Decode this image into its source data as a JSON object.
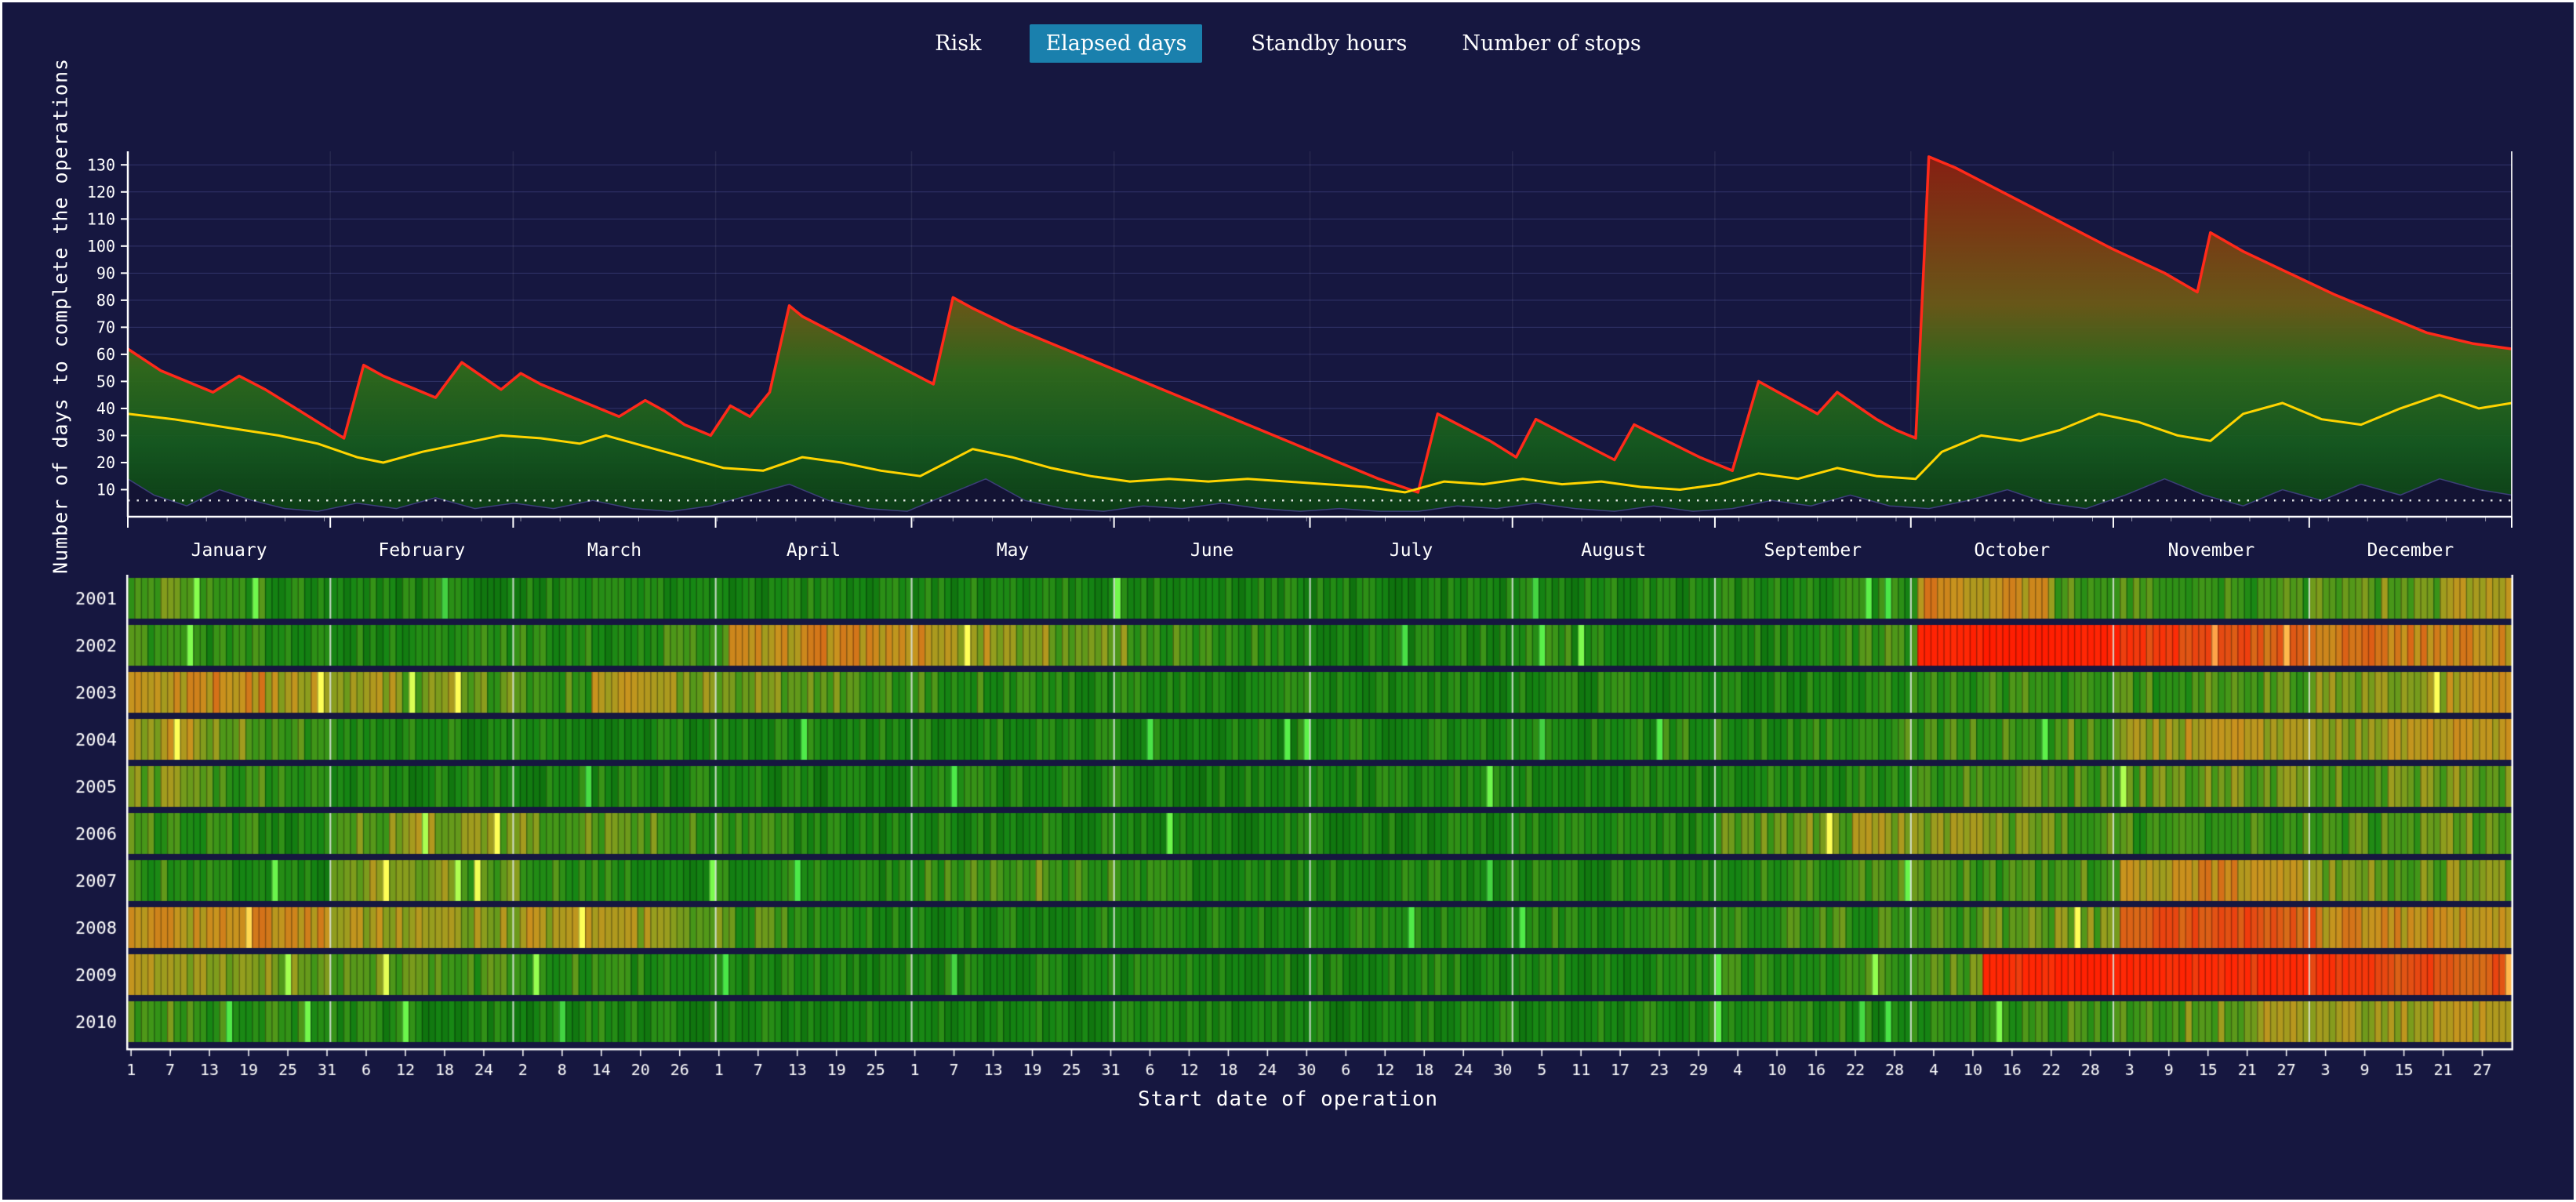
{
  "page": {
    "background": "#161740",
    "frame": "#ffffff"
  },
  "colors": {
    "tab_active_bg": "#1a80ad",
    "max_line": "#ff2a1a",
    "mean_line": "#ffd400",
    "axis": "#ffffff"
  },
  "tabs": [
    {
      "id": "risk",
      "label": "Risk",
      "active": false
    },
    {
      "id": "elapsed-days",
      "label": "Elapsed days",
      "active": true
    },
    {
      "id": "standby-hours",
      "label": "Standby hours",
      "active": false
    },
    {
      "id": "number-of-stops",
      "label": "Number of stops",
      "active": false
    }
  ],
  "chart_data": [
    {
      "type": "area",
      "title": "",
      "ylabel": "Number of days to complete the operations",
      "xlabel": "",
      "months": [
        "January",
        "February",
        "March",
        "April",
        "May",
        "June",
        "July",
        "August",
        "September",
        "October",
        "November",
        "December"
      ],
      "month_boundaries": [
        0,
        31,
        59,
        90,
        120,
        151,
        181,
        212,
        243,
        273,
        304,
        334,
        365
      ],
      "yticks": [
        10,
        20,
        30,
        40,
        50,
        60,
        70,
        80,
        90,
        100,
        110,
        120,
        130
      ],
      "ylim": [
        0,
        135
      ],
      "xlim_days": [
        1,
        365
      ],
      "baseline_dotted_y": 6,
      "series": [
        {
          "name": "max",
          "color": "#ff2a1a",
          "x": [
            1,
            6,
            10,
            14,
            18,
            22,
            26,
            30,
            34,
            37,
            40,
            44,
            48,
            52,
            55,
            58,
            61,
            64,
            68,
            72,
            76,
            80,
            83,
            86,
            90,
            93,
            96,
            99,
            102,
            104,
            108,
            112,
            116,
            120,
            124,
            127,
            130,
            136,
            144,
            152,
            160,
            168,
            176,
            184,
            192,
            198,
            201,
            205,
            209,
            213,
            216,
            220,
            224,
            228,
            231,
            236,
            241,
            246,
            250,
            253,
            256,
            259,
            262,
            265,
            268,
            271,
            274,
            276,
            280,
            288,
            296,
            304,
            312,
            317,
            319,
            324,
            331,
            338,
            345,
            352,
            359,
            365
          ],
          "values": [
            62,
            54,
            50,
            46,
            52,
            47,
            41,
            35,
            29,
            56,
            52,
            48,
            44,
            57,
            52,
            47,
            53,
            49,
            45,
            41,
            37,
            43,
            39,
            34,
            30,
            41,
            37,
            46,
            78,
            74,
            69,
            64,
            59,
            54,
            49,
            81,
            77,
            70,
            62,
            54,
            46,
            38,
            30,
            22,
            14,
            9,
            38,
            33,
            28,
            22,
            36,
            31,
            26,
            21,
            34,
            28,
            22,
            17,
            50,
            46,
            42,
            38,
            46,
            41,
            36,
            32,
            29,
            133,
            129,
            119,
            109,
            99,
            90,
            83,
            105,
            98,
            90,
            82,
            75,
            68,
            64,
            62
          ]
        },
        {
          "name": "mean",
          "color": "#ffd400",
          "x": [
            1,
            8,
            16,
            24,
            30,
            36,
            40,
            46,
            52,
            58,
            64,
            70,
            74,
            80,
            86,
            92,
            98,
            104,
            110,
            116,
            122,
            126,
            130,
            136,
            142,
            148,
            154,
            160,
            166,
            172,
            178,
            184,
            190,
            196,
            202,
            208,
            214,
            220,
            226,
            232,
            238,
            244,
            250,
            256,
            262,
            268,
            274,
            278,
            284,
            290,
            296,
            302,
            308,
            314,
            319,
            324,
            330,
            336,
            342,
            348,
            354,
            360,
            365
          ],
          "values": [
            38,
            36,
            33,
            30,
            27,
            22,
            20,
            24,
            27,
            30,
            29,
            27,
            30,
            26,
            22,
            18,
            17,
            22,
            20,
            17,
            15,
            20,
            25,
            22,
            18,
            15,
            13,
            14,
            13,
            14,
            13,
            12,
            11,
            9,
            13,
            12,
            14,
            12,
            13,
            11,
            10,
            12,
            16,
            14,
            18,
            15,
            14,
            24,
            30,
            28,
            32,
            38,
            35,
            30,
            28,
            38,
            42,
            36,
            34,
            40,
            45,
            40,
            42
          ]
        },
        {
          "name": "min",
          "color": "#131334",
          "x": [
            1,
            5,
            10,
            15,
            20,
            25,
            30,
            36,
            42,
            48,
            54,
            60,
            66,
            72,
            78,
            84,
            90,
            96,
            102,
            108,
            114,
            120,
            126,
            132,
            138,
            144,
            150,
            156,
            162,
            168,
            174,
            180,
            186,
            192,
            198,
            204,
            210,
            216,
            222,
            228,
            234,
            240,
            246,
            252,
            258,
            264,
            270,
            276,
            282,
            288,
            294,
            300,
            306,
            312,
            318,
            324,
            330,
            336,
            342,
            348,
            354,
            360,
            365
          ],
          "values": [
            14,
            8,
            4,
            10,
            6,
            3,
            2,
            5,
            3,
            7,
            3,
            5,
            3,
            6,
            3,
            2,
            4,
            8,
            12,
            6,
            3,
            2,
            8,
            14,
            6,
            3,
            2,
            4,
            3,
            5,
            3,
            2,
            3,
            2,
            2,
            4,
            3,
            5,
            3,
            2,
            4,
            2,
            3,
            6,
            4,
            8,
            4,
            3,
            6,
            10,
            5,
            3,
            8,
            14,
            8,
            4,
            10,
            6,
            12,
            8,
            14,
            10,
            8
          ]
        }
      ]
    },
    {
      "type": "heatmap",
      "xlabel": "Start date of operation",
      "value_unit": "elapsed days",
      "years": [
        "2001",
        "2002",
        "2003",
        "2004",
        "2005",
        "2006",
        "2007",
        "2008",
        "2009",
        "2010"
      ],
      "segments_per_year": 36,
      "month_boundaries": [
        31,
        59,
        90,
        120,
        151,
        181,
        212,
        243,
        273,
        304,
        334
      ],
      "x_tick_labels": [
        "1",
        "7",
        "13",
        "19",
        "25",
        "31",
        "6",
        "12",
        "18",
        "24",
        "2",
        "8",
        "14",
        "20",
        "26",
        "1",
        "7",
        "13",
        "19",
        "25",
        "1",
        "7",
        "13",
        "19",
        "25",
        "31",
        "6",
        "12",
        "18",
        "24",
        "30",
        "6",
        "12",
        "18",
        "24",
        "30",
        "5",
        "11",
        "17",
        "23",
        "29",
        "4",
        "10",
        "16",
        "22",
        "28",
        "4",
        "10",
        "16",
        "22",
        "28",
        "3",
        "9",
        "15",
        "21",
        "27",
        "3",
        "9",
        "15",
        "21",
        "27"
      ],
      "x_tick_step_days": 6,
      "values": [
        [
          35,
          30,
          25,
          22,
          20,
          20,
          22,
          25,
          22,
          20,
          22,
          20,
          20,
          20,
          22,
          20,
          20,
          20,
          18,
          18,
          20,
          20,
          22,
          20,
          22,
          25,
          28,
          60,
          55,
          35,
          30,
          28,
          30,
          35,
          40,
          50
        ],
        [
          30,
          25,
          22,
          22,
          20,
          25,
          25,
          22,
          28,
          55,
          60,
          58,
          50,
          45,
          40,
          30,
          25,
          22,
          20,
          20,
          22,
          25,
          22,
          20,
          22,
          25,
          30,
          110,
          120,
          115,
          90,
          80,
          75,
          70,
          65,
          60
        ],
        [
          55,
          60,
          50,
          45,
          40,
          35,
          30,
          50,
          45,
          40,
          35,
          30,
          28,
          25,
          22,
          20,
          20,
          22,
          20,
          18,
          20,
          20,
          22,
          20,
          22,
          20,
          25,
          28,
          30,
          28,
          30,
          32,
          35,
          40,
          45,
          55
        ],
        [
          50,
          40,
          30,
          25,
          22,
          20,
          22,
          20,
          22,
          20,
          22,
          20,
          22,
          20,
          20,
          18,
          20,
          20,
          20,
          20,
          18,
          20,
          22,
          25,
          22,
          25,
          28,
          30,
          32,
          35,
          45,
          50,
          48,
          45,
          50,
          55
        ],
        [
          40,
          30,
          25,
          22,
          20,
          22,
          20,
          22,
          20,
          20,
          18,
          20,
          22,
          20,
          20,
          18,
          18,
          20,
          20,
          18,
          20,
          22,
          20,
          22,
          25,
          22,
          25,
          30,
          35,
          32,
          35,
          40,
          38,
          35,
          38,
          40
        ],
        [
          30,
          25,
          22,
          40,
          45,
          42,
          38,
          35,
          30,
          25,
          22,
          20,
          20,
          22,
          20,
          20,
          18,
          20,
          18,
          20,
          20,
          22,
          20,
          22,
          35,
          40,
          45,
          42,
          38,
          35,
          30,
          28,
          30,
          32,
          35,
          38
        ],
        [
          28,
          24,
          22,
          45,
          40,
          35,
          28,
          25,
          22,
          22,
          20,
          22,
          30,
          35,
          30,
          25,
          22,
          20,
          20,
          22,
          20,
          22,
          20,
          22,
          25,
          28,
          30,
          30,
          28,
          32,
          55,
          60,
          50,
          40,
          38,
          42
        ],
        [
          55,
          60,
          58,
          50,
          48,
          45,
          50,
          45,
          40,
          30,
          25,
          22,
          22,
          20,
          22,
          20,
          22,
          20,
          22,
          20,
          22,
          25,
          22,
          25,
          28,
          30,
          28,
          30,
          35,
          40,
          80,
          85,
          75,
          60,
          58,
          55
        ],
        [
          48,
          45,
          40,
          38,
          35,
          30,
          28,
          25,
          22,
          22,
          20,
          20,
          20,
          22,
          20,
          20,
          18,
          20,
          20,
          22,
          20,
          22,
          20,
          22,
          25,
          28,
          30,
          35,
          100,
          110,
          105,
          100,
          95,
          90,
          85,
          80
        ],
        [
          35,
          28,
          25,
          22,
          20,
          22,
          20,
          22,
          20,
          20,
          18,
          20,
          20,
          20,
          18,
          20,
          18,
          20,
          18,
          20,
          20,
          20,
          22,
          20,
          22,
          25,
          22,
          25,
          28,
          30,
          32,
          38,
          45,
          48,
          50,
          52
        ]
      ],
      "colormap": [
        [
          0,
          [
            8,
            95,
            8
          ]
        ],
        [
          20,
          [
            22,
            135,
            20
          ]
        ],
        [
          32,
          [
            62,
            150,
            24
          ]
        ],
        [
          45,
          [
            150,
            158,
            30
          ]
        ],
        [
          58,
          [
            200,
            148,
            30
          ]
        ],
        [
          70,
          [
            214,
            110,
            24
          ]
        ],
        [
          85,
          [
            230,
            72,
            18
          ]
        ],
        [
          100,
          [
            255,
            42,
            6
          ]
        ],
        [
          130,
          [
            255,
            26,
            0
          ]
        ]
      ]
    }
  ]
}
